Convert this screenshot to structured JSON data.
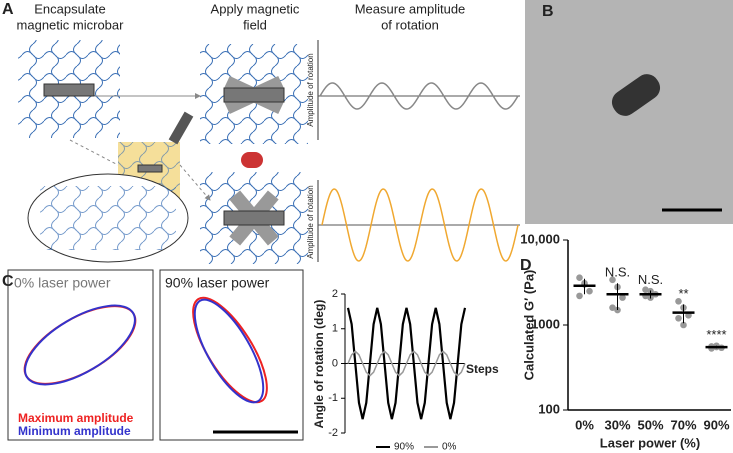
{
  "panel_a": {
    "label": "A",
    "step_1": [
      "Encapsulate",
      "magnetic microbar"
    ],
    "step_2": [
      "Apply magnetic",
      "field"
    ],
    "step_3": [
      "Measure amplitude",
      "of rotation"
    ],
    "axis_label_top": "Amplitude of rotation",
    "axis_label_bottom": "Amplitude of rotation"
  },
  "panel_b": {
    "label": "B"
  },
  "panel_c": {
    "label": "C",
    "left_title": "0% laser power",
    "right_title": "90% laser power",
    "legend": [
      "Maximum amplitude",
      "Minimum amplitude"
    ],
    "chart": {
      "type": "line",
      "ylabel": "Angle of rotation (deg)",
      "xlabel": "Steps",
      "ylim": [
        -2,
        2
      ],
      "yticks": [
        -2,
        -1,
        0,
        1,
        2
      ],
      "series": [
        {
          "name": "90%",
          "color": "#000000",
          "values": [
            1.6,
            1.13,
            0,
            -1.13,
            -1.6,
            -1.13,
            0,
            1.13,
            1.6,
            1.13,
            0,
            -1.13,
            -1.6,
            -1.13,
            0,
            1.13,
            1.6,
            1.13,
            0,
            -1.13,
            -1.6,
            -1.13,
            0,
            1.13,
            1.6,
            1.13,
            0,
            -1.13,
            -1.6,
            -1.13,
            0,
            1.13,
            1.6
          ]
        },
        {
          "name": "0%",
          "color": "#999999",
          "values": [
            0,
            0.25,
            0.35,
            0.25,
            0,
            -0.25,
            -0.35,
            -0.25,
            0,
            0.25,
            0.35,
            0.25,
            0,
            -0.25,
            -0.35,
            -0.25,
            0,
            0.25,
            0.35,
            0.25,
            0,
            -0.25,
            -0.35,
            -0.25,
            0,
            0.25,
            0.35,
            0.25,
            0,
            -0.25,
            -0.35,
            -0.25,
            0
          ]
        }
      ]
    }
  },
  "panel_d": {
    "label": "D",
    "chart": {
      "type": "dot",
      "ylabel": "Calculated G′ (Pa)",
      "xlabel": "Laser power (%)",
      "log_scale": true,
      "categories": [
        "0%",
        "30%",
        "50%",
        "70%",
        "90%"
      ],
      "ylim": [
        100,
        10000
      ],
      "yticks": [
        100,
        1000,
        {
          "value": 10000,
          "label": "10,000"
        }
      ],
      "means": [
        2900,
        2300,
        2300,
        1400,
        550
      ],
      "errors": [
        600,
        800,
        250,
        350,
        20
      ],
      "points": [
        [
          3600,
          3000,
          2500,
          2200,
          3100
        ],
        [
          3400,
          2800,
          2100,
          1600,
          1500
        ],
        [
          2600,
          2500,
          2300,
          2200,
          2100
        ],
        [
          1900,
          1600,
          1300,
          1200,
          1000
        ],
        [
          560,
          550,
          540,
          530,
          570
        ]
      ],
      "annotations": [
        null,
        "N.S.",
        "N.S.",
        "**",
        "****"
      ],
      "mean_color": "#000000",
      "point_color": "#999999"
    }
  }
}
